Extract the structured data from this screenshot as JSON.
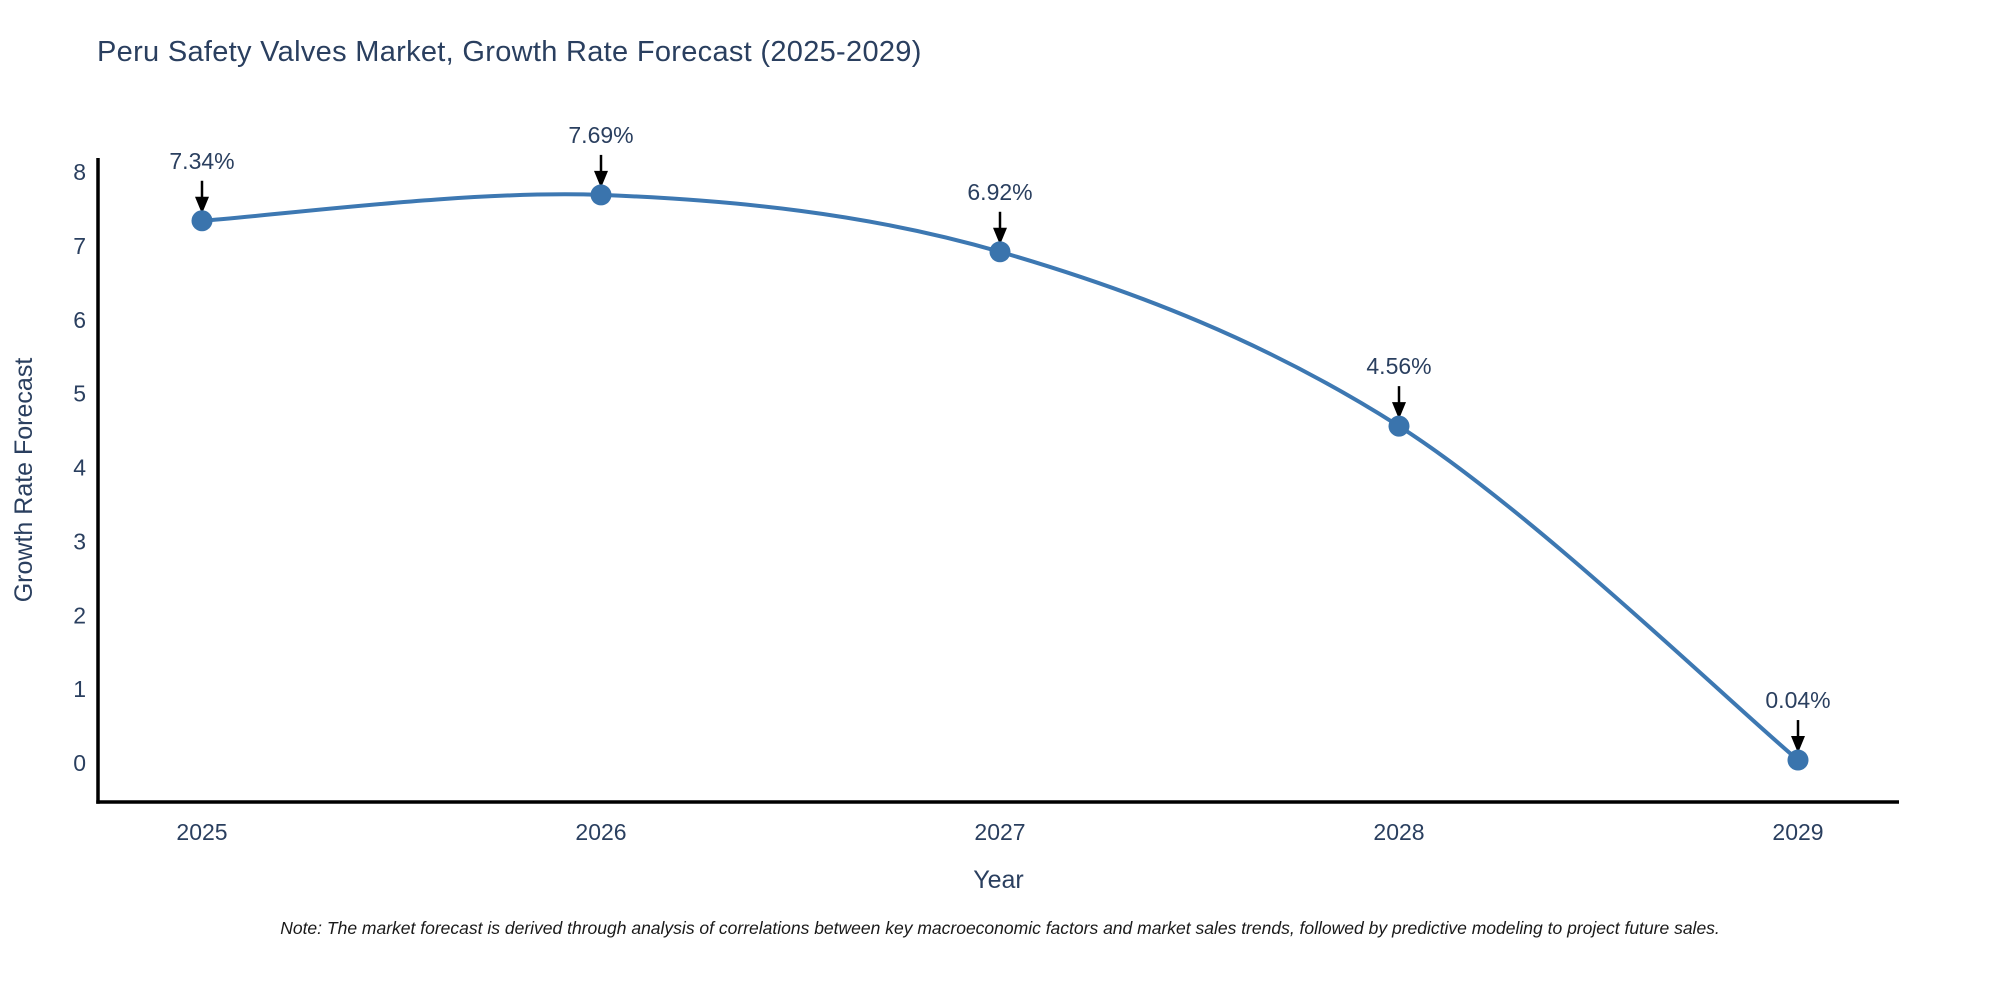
{
  "note": "Note: The market forecast is derived through analysis of correlations between key macroeconomic factors and market sales trends, followed by predictive modeling to project future sales.",
  "chart_data": {
    "type": "line",
    "title": "Peru Safety Valves Market, Growth Rate Forecast (2025-2029)",
    "xlabel": "Year",
    "ylabel": "Growth Rate Forecast",
    "x": [
      "2025",
      "2026",
      "2027",
      "2028",
      "2029"
    ],
    "values": [
      7.34,
      7.69,
      6.92,
      4.56,
      0.04
    ],
    "point_labels": [
      "7.34%",
      "7.69%",
      "6.92%",
      "4.56%",
      "0.04%"
    ],
    "y_ticks": [
      0,
      1,
      2,
      3,
      4,
      5,
      6,
      7,
      8
    ],
    "ylim": [
      0,
      8
    ],
    "line_shape": "spline",
    "grid": false,
    "legend": "none",
    "colors": {
      "line": "#3d78b2",
      "marker": "#3a74ad",
      "axis": "#000000",
      "text": "#2a3f5f",
      "annotation_arrow": "#000000",
      "background": "#ffffff"
    }
  }
}
